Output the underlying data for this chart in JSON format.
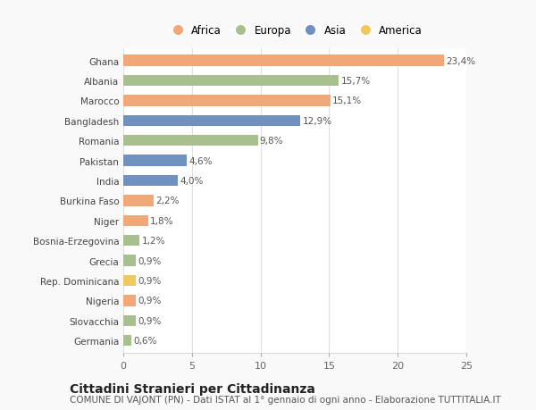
{
  "categories": [
    "Ghana",
    "Albania",
    "Marocco",
    "Bangladesh",
    "Romania",
    "Pakistan",
    "India",
    "Burkina Faso",
    "Niger",
    "Bosnia-Erzegovina",
    "Grecia",
    "Rep. Dominicana",
    "Nigeria",
    "Slovacchia",
    "Germania"
  ],
  "values": [
    23.4,
    15.7,
    15.1,
    12.9,
    9.8,
    4.6,
    4.0,
    2.2,
    1.8,
    1.2,
    0.9,
    0.9,
    0.9,
    0.9,
    0.6
  ],
  "labels": [
    "23,4%",
    "15,7%",
    "15,1%",
    "12,9%",
    "9,8%",
    "4,6%",
    "4,0%",
    "2,2%",
    "1,8%",
    "1,2%",
    "0,9%",
    "0,9%",
    "0,9%",
    "0,9%",
    "0,6%"
  ],
  "continents": [
    "Africa",
    "Europa",
    "Africa",
    "Asia",
    "Europa",
    "Asia",
    "Asia",
    "Africa",
    "Africa",
    "Europa",
    "Europa",
    "America",
    "Africa",
    "Europa",
    "Europa"
  ],
  "colors": {
    "Africa": "#F0A878",
    "Europa": "#A8C090",
    "Asia": "#7090C0",
    "America": "#F0C860"
  },
  "legend_order": [
    "Africa",
    "Europa",
    "Asia",
    "America"
  ],
  "title": "Cittadini Stranieri per Cittadinanza",
  "subtitle": "COMUNE DI VAJONT (PN) - Dati ISTAT al 1° gennaio di ogni anno - Elaborazione TUTTITALIA.IT",
  "xlim": [
    0,
    25
  ],
  "xticks": [
    0,
    5,
    10,
    15,
    20,
    25
  ],
  "background_color": "#f9f9f9",
  "plot_bg_color": "#ffffff",
  "grid_color": "#e0e0e0",
  "title_fontsize": 10,
  "subtitle_fontsize": 7.5,
  "bar_label_fontsize": 7.5,
  "ytick_fontsize": 7.5,
  "xtick_fontsize": 8,
  "legend_fontsize": 8.5,
  "bar_height": 0.55
}
